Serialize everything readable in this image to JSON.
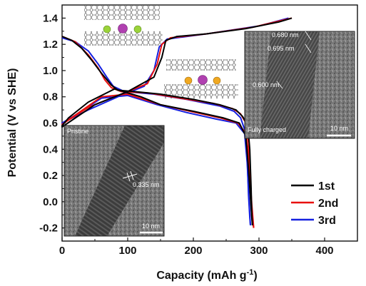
{
  "chart_data": {
    "type": "line",
    "xlabel": "Capacity (mAh g",
    "xlabel_sup": "-1",
    "xlabel_end": ")",
    "ylabel": "Potential (V vs SHE)",
    "xlim": [
      0,
      450
    ],
    "ylim": [
      -0.3,
      1.5
    ],
    "x_ticks": [
      0,
      100,
      200,
      300,
      400
    ],
    "y_ticks": [
      -0.2,
      0.0,
      0.2,
      0.4,
      0.6,
      0.8,
      1.0,
      1.2,
      1.4
    ],
    "legend_position": "bottom-right",
    "series": [
      {
        "name": "1st",
        "color": "#000000",
        "discharge": [
          [
            0,
            1.26
          ],
          [
            15,
            1.23
          ],
          [
            30,
            1.17
          ],
          [
            45,
            1.08
          ],
          [
            60,
            0.98
          ],
          [
            75,
            0.89
          ],
          [
            85,
            0.85
          ],
          [
            110,
            0.84
          ],
          [
            150,
            0.82
          ],
          [
            200,
            0.78
          ],
          [
            240,
            0.74
          ],
          [
            265,
            0.7
          ],
          [
            275,
            0.65
          ],
          [
            283,
            0.58
          ],
          [
            286,
            0.4
          ],
          [
            288,
            0.1
          ],
          [
            289,
            -0.1
          ],
          [
            290,
            -0.18
          ]
        ],
        "charge": [
          [
            290,
            -0.18
          ],
          [
            288,
            -0.05
          ],
          [
            284,
            0.25
          ],
          [
            280,
            0.5
          ],
          [
            270,
            0.6
          ],
          [
            245,
            0.64
          ],
          [
            200,
            0.69
          ],
          [
            150,
            0.74
          ],
          [
            120,
            0.8
          ],
          [
            80,
            0.86
          ],
          [
            40,
            0.76
          ],
          [
            10,
            0.64
          ],
          [
            0,
            0.58
          ],
          [
            0,
            0.57
          ],
          [
            50,
            0.74
          ],
          [
            100,
            0.84
          ],
          [
            140,
            0.95
          ],
          [
            152,
            1.1
          ],
          [
            158,
            1.23
          ],
          [
            175,
            1.26
          ],
          [
            220,
            1.28
          ],
          [
            280,
            1.32
          ],
          [
            330,
            1.37
          ],
          [
            350,
            1.4
          ]
        ]
      },
      {
        "name": "2nd",
        "color": "#e8100f",
        "discharge": [
          [
            0,
            1.26
          ],
          [
            20,
            1.22
          ],
          [
            40,
            1.12
          ],
          [
            55,
            1.02
          ],
          [
            65,
            0.93
          ],
          [
            75,
            0.87
          ],
          [
            90,
            0.84
          ],
          [
            130,
            0.83
          ],
          [
            180,
            0.79
          ],
          [
            230,
            0.75
          ],
          [
            260,
            0.71
          ],
          [
            272,
            0.67
          ],
          [
            280,
            0.6
          ],
          [
            284,
            0.45
          ],
          [
            287,
            0.1
          ],
          [
            289,
            -0.12
          ],
          [
            292,
            -0.2
          ]
        ],
        "charge": [
          [
            292,
            -0.2
          ],
          [
            289,
            -0.02
          ],
          [
            285,
            0.28
          ],
          [
            280,
            0.52
          ],
          [
            268,
            0.6
          ],
          [
            240,
            0.64
          ],
          [
            195,
            0.69
          ],
          [
            150,
            0.74
          ],
          [
            100,
            0.82
          ],
          [
            60,
            0.8
          ],
          [
            20,
            0.66
          ],
          [
            0,
            0.59
          ],
          [
            40,
            0.72
          ],
          [
            90,
            0.82
          ],
          [
            130,
            0.9
          ],
          [
            145,
            1.05
          ],
          [
            152,
            1.2
          ],
          [
            165,
            1.25
          ],
          [
            220,
            1.28
          ],
          [
            290,
            1.33
          ],
          [
            350,
            1.4
          ]
        ]
      },
      {
        "name": "3rd",
        "color": "#1520e0",
        "discharge": [
          [
            0,
            1.25
          ],
          [
            20,
            1.22
          ],
          [
            40,
            1.15
          ],
          [
            55,
            1.05
          ],
          [
            68,
            0.95
          ],
          [
            78,
            0.88
          ],
          [
            95,
            0.84
          ],
          [
            140,
            0.82
          ],
          [
            190,
            0.78
          ],
          [
            240,
            0.73
          ],
          [
            262,
            0.69
          ],
          [
            272,
            0.64
          ],
          [
            278,
            0.55
          ],
          [
            282,
            0.35
          ],
          [
            284,
            0.05
          ],
          [
            286,
            -0.12
          ],
          [
            287,
            -0.18
          ]
        ],
        "charge": [
          [
            287,
            -0.18
          ],
          [
            285,
            0.0
          ],
          [
            282,
            0.3
          ],
          [
            278,
            0.52
          ],
          [
            265,
            0.6
          ],
          [
            235,
            0.63
          ],
          [
            190,
            0.68
          ],
          [
            145,
            0.74
          ],
          [
            100,
            0.81
          ],
          [
            60,
            0.79
          ],
          [
            20,
            0.66
          ],
          [
            0,
            0.6
          ],
          [
            40,
            0.7
          ],
          [
            85,
            0.8
          ],
          [
            125,
            0.88
          ],
          [
            140,
            1.0
          ],
          [
            148,
            1.18
          ],
          [
            160,
            1.24
          ],
          [
            220,
            1.28
          ],
          [
            300,
            1.34
          ],
          [
            345,
            1.4
          ]
        ]
      }
    ],
    "annotations": {
      "inset_pristine_label": "Pristine",
      "inset_pristine_spacing": "0.335 nm",
      "inset_pristine_scale": "10 nm",
      "inset_charged_label": "Fully charged",
      "inset_charged_spacing_1": "0.680 nm",
      "inset_charged_spacing_2": "0.695 nm",
      "inset_charged_spacing_3": "0.600 nm",
      "inset_charged_scale": "10 nm"
    }
  }
}
